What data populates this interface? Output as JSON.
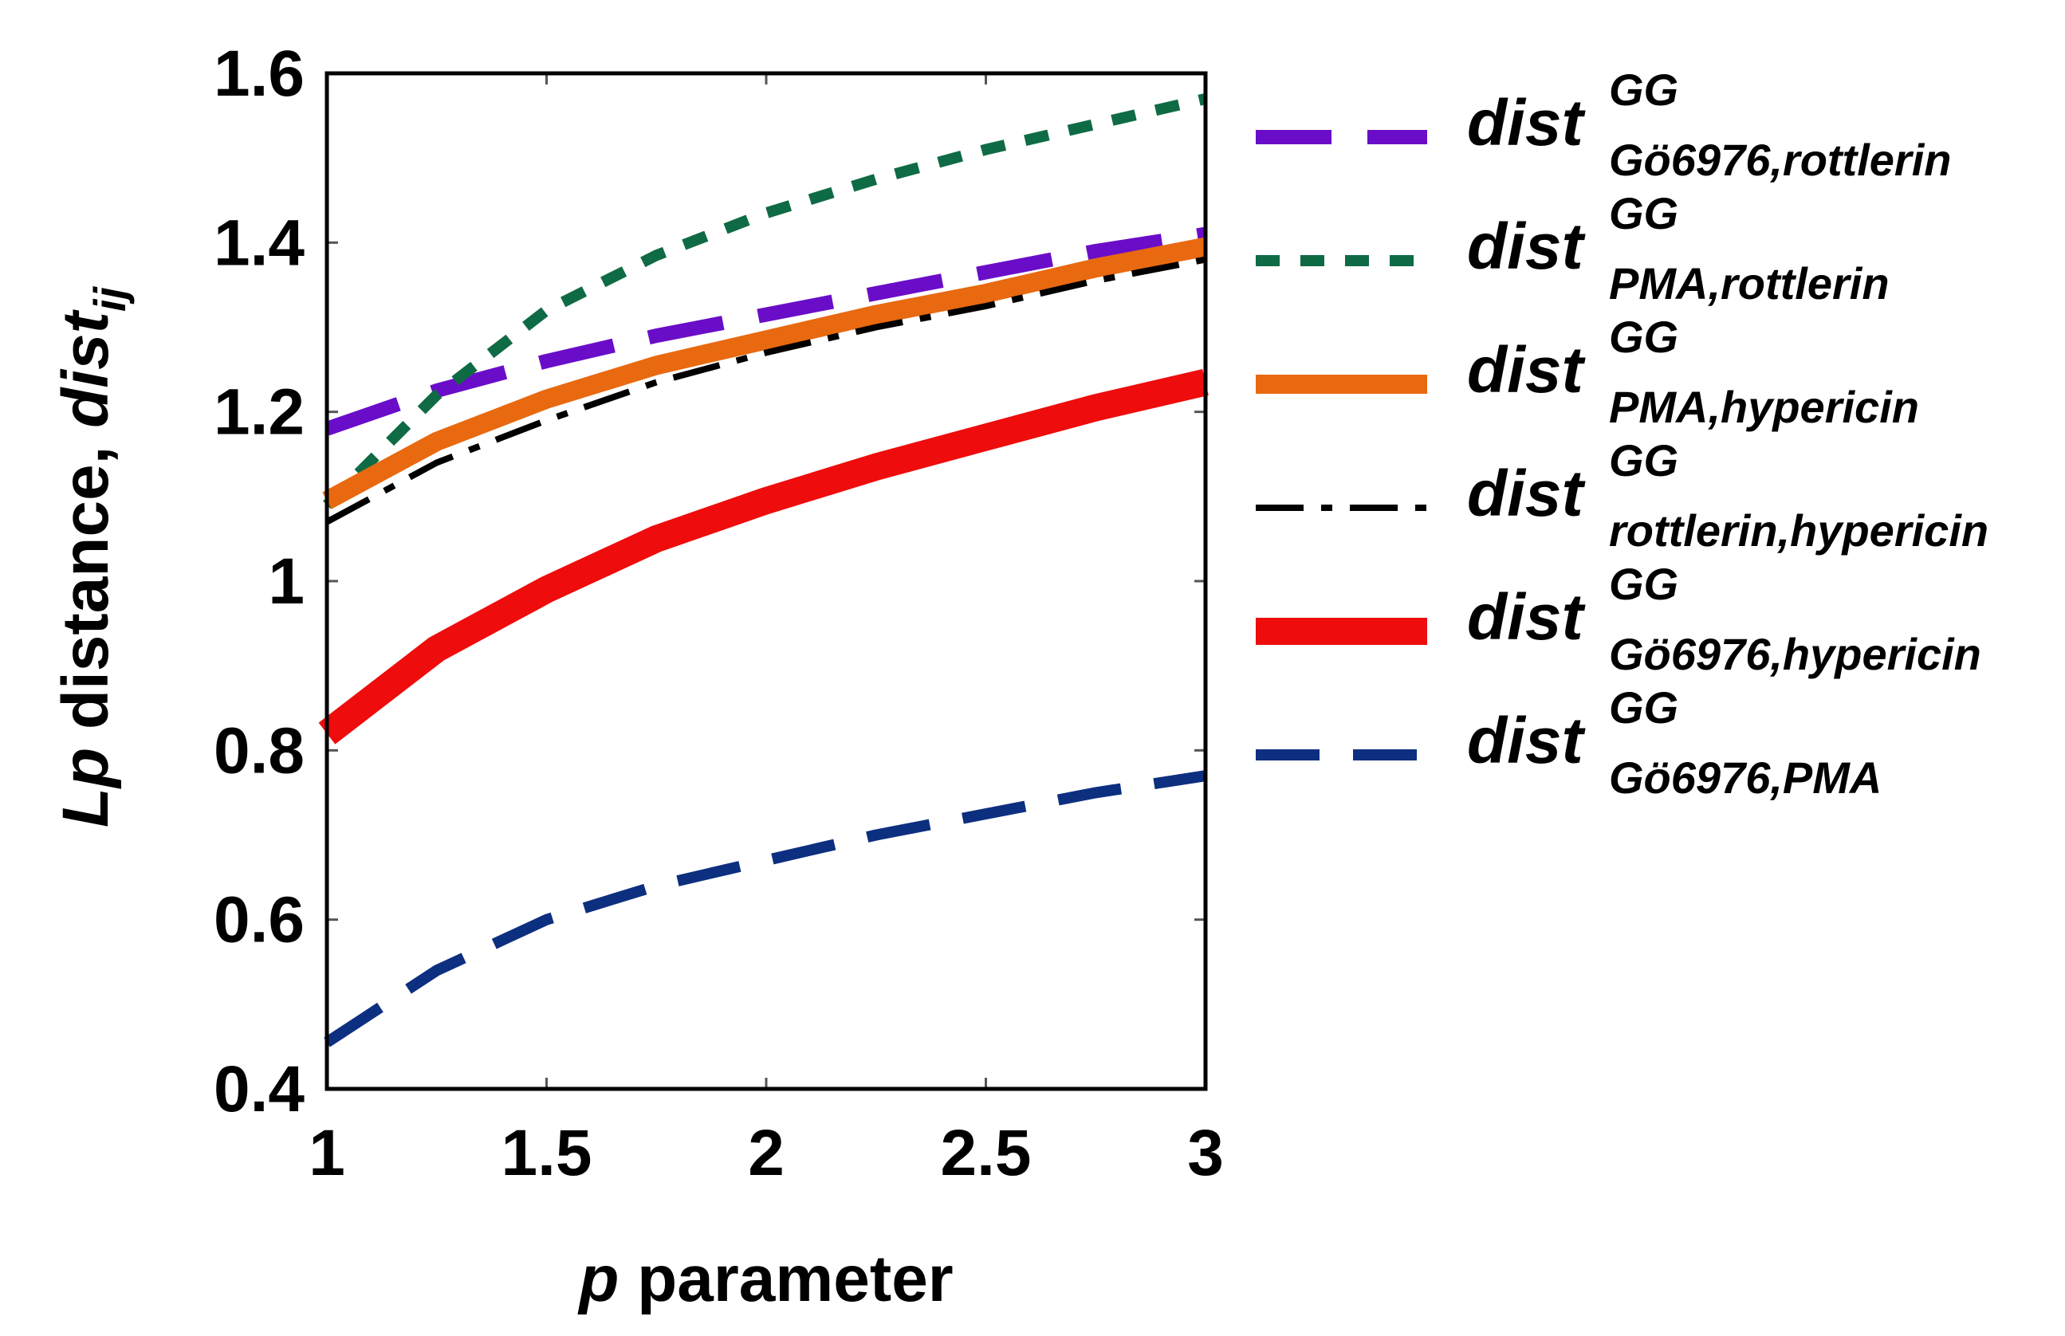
{
  "chart_data": {
    "type": "line",
    "title": "",
    "xlabel": {
      "italic": "p",
      "text": " parameter"
    },
    "ylabel": {
      "italic_prefix": "Lp",
      "text": " distance, ",
      "italic_var": "dist",
      "italic_sub": "ij"
    },
    "xlim": [
      1,
      3
    ],
    "ylim": [
      0.4,
      1.6
    ],
    "xticks": [
      1,
      1.5,
      2,
      2.5,
      3
    ],
    "xtick_labels": [
      "1",
      "1.5",
      "2",
      "2.5",
      "3"
    ],
    "yticks": [
      0.4,
      0.6,
      0.8,
      1.0,
      1.2,
      1.4,
      1.6
    ],
    "ytick_labels": [
      "0.4",
      "0.6",
      "0.8",
      "1",
      "1.2",
      "1.4",
      "1.6"
    ],
    "legend_position": "right",
    "x": [
      1.0,
      1.25,
      1.5,
      1.75,
      2.0,
      2.25,
      2.5,
      2.75,
      3.0
    ],
    "series": [
      {
        "name": "dist GG Gö6976,rottlerin",
        "base": "dist",
        "sup": "GG",
        "sub": "Gö6976,rottlerin",
        "color": "#6a0dc8",
        "style": "long-dash",
        "values": [
          1.18,
          1.225,
          1.26,
          1.29,
          1.315,
          1.34,
          1.365,
          1.39,
          1.41
        ]
      },
      {
        "name": "dist GG PMA,rottlerin",
        "base": "dist",
        "sup": "GG",
        "sub": "PMA,rottlerin",
        "color": "#0f6b45",
        "style": "short-dash",
        "values": [
          1.09,
          1.22,
          1.32,
          1.385,
          1.435,
          1.475,
          1.51,
          1.54,
          1.57
        ]
      },
      {
        "name": "dist GG PMA,hypericin",
        "base": "dist",
        "sup": "GG",
        "sub": "PMA,hypericin",
        "color": "#e8690f",
        "style": "solid-medium",
        "values": [
          1.095,
          1.165,
          1.215,
          1.255,
          1.285,
          1.315,
          1.34,
          1.37,
          1.395
        ]
      },
      {
        "name": "dist GG rottlerin,hypericin",
        "base": "dist",
        "sup": "GG",
        "sub": "rottlerin,hypericin",
        "color": "#000000",
        "style": "dash-dot",
        "values": [
          1.07,
          1.14,
          1.19,
          1.235,
          1.27,
          1.3,
          1.325,
          1.355,
          1.38
        ]
      },
      {
        "name": "dist GG Gö6976,hypericin",
        "base": "dist",
        "sup": "GG",
        "sub": "Gö6976,hypericin",
        "color": "#ee0c0c",
        "style": "solid-thick",
        "values": [
          0.82,
          0.92,
          0.99,
          1.05,
          1.095,
          1.135,
          1.17,
          1.205,
          1.235
        ]
      },
      {
        "name": "dist GG Gö6976,PMA",
        "base": "dist",
        "sup": "GG",
        "sub": "Gö6976,PMA",
        "color": "#0d2f80",
        "style": "dash",
        "values": [
          0.455,
          0.54,
          0.6,
          0.64,
          0.67,
          0.7,
          0.725,
          0.75,
          0.77
        ]
      }
    ]
  }
}
